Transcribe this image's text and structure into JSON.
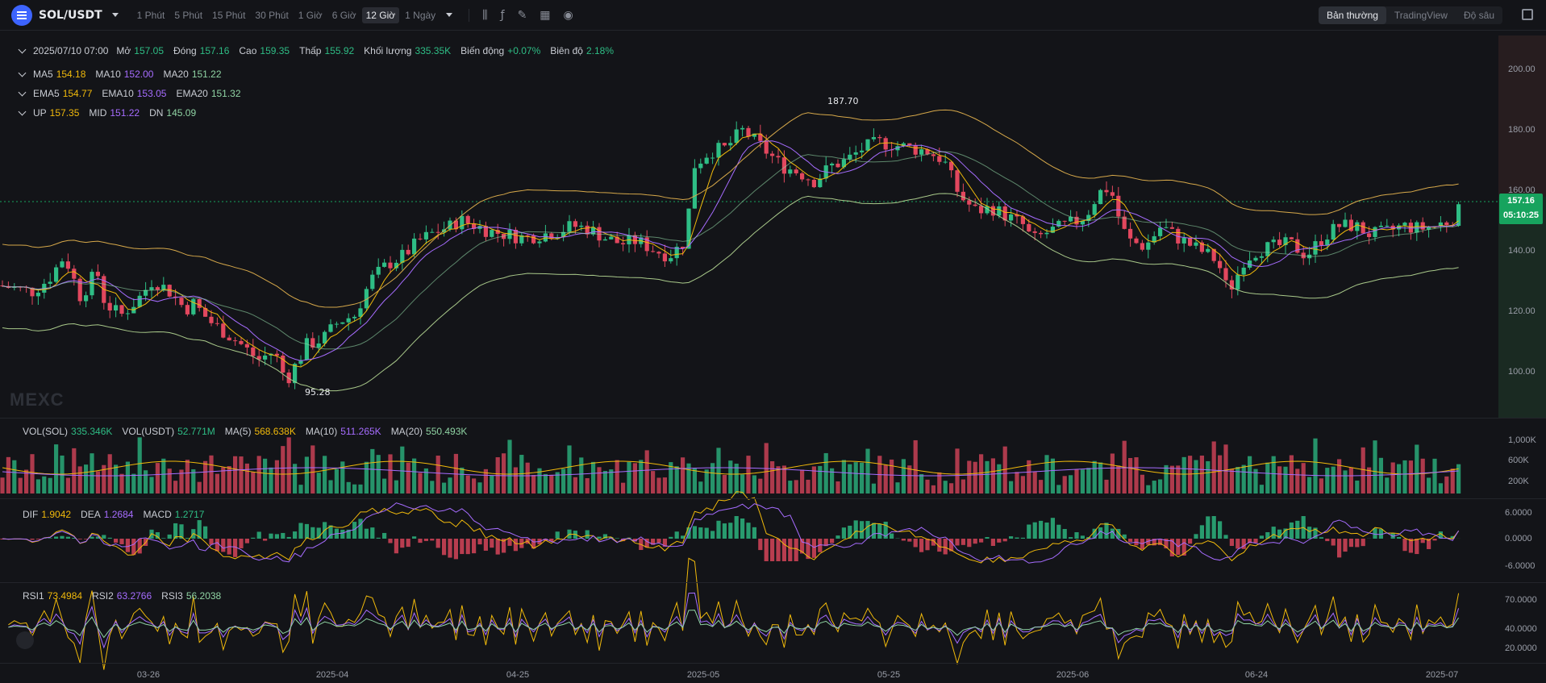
{
  "header": {
    "symbol": "SOL/USDT",
    "intervals": [
      "1 Phút",
      "5 Phút",
      "15 Phút",
      "30 Phút",
      "1 Giờ",
      "6 Giờ",
      "12 Giờ",
      "1 Ngày"
    ],
    "active_interval": "12 Giờ",
    "views": [
      "Bản thường",
      "TradingView",
      "Độ sâu"
    ],
    "active_view": "Bản thường"
  },
  "ohlc": {
    "date": "2025/07/10 07:00",
    "open_label": "Mở",
    "open": "157.05",
    "close_label": "Đóng",
    "close": "157.16",
    "high_label": "Cao",
    "high": "159.35",
    "low_label": "Thấp",
    "low": "155.92",
    "vol_label": "Khối lượng",
    "vol": "335.35K",
    "change_label": "Biến động",
    "change": "+0.07%",
    "amp_label": "Biên độ",
    "amp": "2.18%"
  },
  "ma": {
    "ma5_label": "MA5",
    "ma5": "154.18",
    "ma10_label": "MA10",
    "ma10": "152.00",
    "ma20_label": "MA20",
    "ma20": "151.22"
  },
  "ema": {
    "ema5_label": "EMA5",
    "ema5": "154.77",
    "ema10_label": "EMA10",
    "ema10": "153.05",
    "ema20_label": "EMA20",
    "ema20": "151.32"
  },
  "boll": {
    "up_label": "UP",
    "up": "157.35",
    "mid_label": "MID",
    "mid": "151.22",
    "dn_label": "DN",
    "dn": "145.09"
  },
  "price_axis": [
    "200.00",
    "180.00",
    "160.00",
    "140.00",
    "120.00",
    "100.00"
  ],
  "high_marker": "187.70",
  "low_marker": "95.28",
  "last_price": "157.16",
  "countdown": "05:10:25",
  "watermark": "MEXC",
  "vol": {
    "sol_label": "VOL(SOL)",
    "sol": "335.346K",
    "usdt_label": "VOL(USDT)",
    "usdt": "52.771M",
    "ma5_label": "MA(5)",
    "ma5": "568.638K",
    "ma10_label": "MA(10)",
    "ma10": "511.265K",
    "ma20_label": "MA(20)",
    "ma20": "550.493K",
    "axis": [
      "1,000K",
      "600K",
      "200K"
    ]
  },
  "macd": {
    "dif_label": "DIF",
    "dif": "1.9042",
    "dea_label": "DEA",
    "dea": "1.2684",
    "macd_label": "MACD",
    "macd": "1.2717",
    "axis": [
      "6.0000",
      "0.0000",
      "-6.0000"
    ]
  },
  "rsi": {
    "rsi1_label": "RSI1",
    "rsi1": "73.4984",
    "rsi2_label": "RSI2",
    "rsi2": "63.2766",
    "rsi3_label": "RSI3",
    "rsi3": "56.2038",
    "axis": [
      "70.0000",
      "40.0000",
      "20.0000"
    ]
  },
  "x_axis": [
    "03-26",
    "2025-04",
    "04-25",
    "2025-05",
    "05-25",
    "2025-06",
    "06-24",
    "2025-07"
  ],
  "colors": {
    "up": "#2ebd85",
    "down": "#e2475e",
    "ma5": "#f0b90b",
    "ma10": "#a66cff",
    "ma20": "#8fd3a3"
  }
}
